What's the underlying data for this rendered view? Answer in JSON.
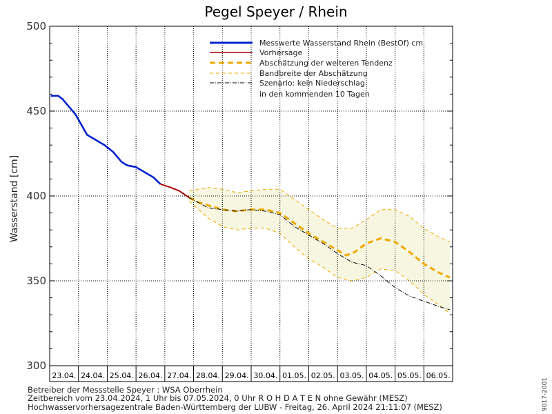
{
  "chart_data": {
    "type": "line",
    "title": "Pegel Speyer / Rhein",
    "ylabel": "Wasserstand [cm]",
    "ylim": [
      300,
      500
    ],
    "yticks": [
      300,
      350,
      400,
      450,
      500
    ],
    "xlim": [
      0,
      14
    ],
    "x_unit": "days since 23.04.2024 00:00",
    "x_tick_labels": [
      "23.04.",
      "24.04.",
      "25.04.",
      "26.04.",
      "27.04.",
      "28.04.",
      "29.04.",
      "30.04.",
      "01.05.",
      "02.05.",
      "03.05.",
      "04.05.",
      "05.05.",
      "06.05."
    ],
    "grid": true,
    "legend_position": "top-right",
    "legend": [
      "Messwerte Wasserstand Rhein (BestOf)  cm",
      "Vorhersage",
      "Abschätzung der weiteren Tendenz",
      "Bandbreite der Abschätzung",
      "Szenario: kein Niederschlag",
      "in den kommenden 10 Tagen"
    ],
    "series": [
      {
        "name": "Messwerte Wasserstand Rhein (BestOf)",
        "color": "#0022cc",
        "style": "solid",
        "x": [
          0.04,
          0.3,
          0.45,
          0.6,
          0.9,
          1.1,
          1.3,
          1.6,
          1.9,
          2.2,
          2.5,
          2.7,
          3.0,
          3.3,
          3.6,
          3.85
        ],
        "y": [
          459,
          459,
          457,
          454,
          448,
          442,
          436,
          433,
          430,
          426,
          420,
          418,
          417,
          414,
          411,
          407
        ]
      },
      {
        "name": "Vorhersage",
        "color": "#aa0000",
        "style": "solid",
        "x": [
          3.85,
          4.2,
          4.5,
          4.85
        ],
        "y": [
          407,
          405,
          403,
          399
        ]
      },
      {
        "name": "Abschätzung der weiteren Tendenz",
        "color": "#f0a800",
        "style": "dashed",
        "x": [
          4.85,
          5.2,
          6.0,
          6.5,
          7.0,
          7.5,
          8.0,
          8.5,
          9.0,
          9.5,
          10.0,
          10.3,
          10.6,
          11.0,
          11.5,
          12.0,
          12.5,
          13.0,
          13.5,
          13.9
        ],
        "y": [
          399,
          396,
          392,
          391,
          392,
          392,
          390,
          384,
          378,
          373,
          368,
          365,
          367,
          372,
          375,
          373,
          367,
          360,
          355,
          352
        ]
      },
      {
        "name": "Bandbreite der Abschätzung",
        "color": "#f0a800",
        "style": "dashed",
        "band": true,
        "x": [
          4.85,
          5.5,
          6.0,
          6.5,
          7.0,
          7.5,
          8.0,
          8.5,
          9.0,
          9.5,
          10.0,
          10.5,
          11.0,
          11.5,
          12.0,
          12.5,
          13.0,
          13.5,
          13.9
        ],
        "upper": [
          403,
          405,
          404,
          402,
          403,
          404,
          404,
          398,
          392,
          386,
          381,
          381,
          386,
          392,
          392,
          388,
          381,
          376,
          373
        ],
        "lower": [
          397,
          387,
          382,
          380,
          381,
          381,
          378,
          370,
          363,
          358,
          352,
          350,
          352,
          357,
          356,
          350,
          342,
          336,
          331
        ]
      },
      {
        "name": "Szenario: kein Niederschlag",
        "color": "#000000",
        "style": "dashdot",
        "x": [
          4.85,
          5.5,
          6.0,
          6.5,
          7.0,
          7.5,
          8.0,
          8.5,
          9.0,
          9.5,
          10.0,
          10.5,
          11.0,
          11.5,
          12.0,
          12.5,
          13.0,
          13.5,
          13.9
        ],
        "y": [
          399,
          393,
          392,
          391,
          392,
          391,
          389,
          382,
          377,
          372,
          366,
          361,
          359,
          353,
          346,
          341,
          338,
          335,
          333
        ]
      }
    ]
  },
  "footer": {
    "line1": "Betreiber der Messstelle Speyer : WSA Oberrhein",
    "line2": "Zeitbereich vom 23.04.2024, 1 Uhr bis 07.05.2024, 0 Uhr    R O H D A T E N ohne Gewähr (MESZ)",
    "line3": "Hochwasservorhersagezentrale Baden-Württemberg der LUBW - Freitag, 26. April 2024 21:11:07 (MESZ)"
  },
  "side_label": "9017-2001",
  "colors": {
    "background": "#ffffff",
    "band_fill": "#f5f5dc",
    "grid": "#000000"
  }
}
